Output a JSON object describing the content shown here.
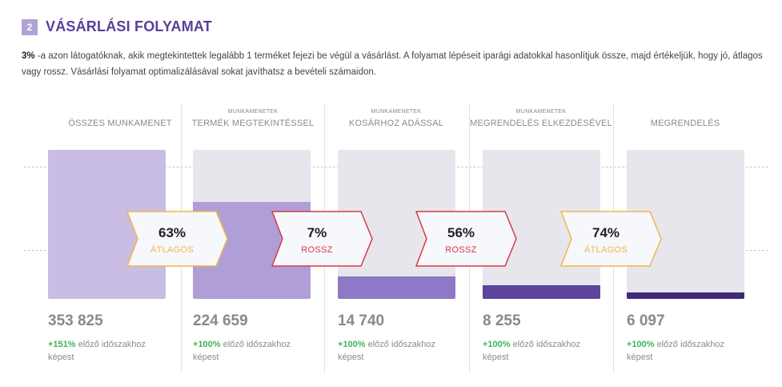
{
  "section": {
    "number": "2",
    "title": "VÁSÁRLÁSI FOLYAMAT"
  },
  "description": {
    "highlight": "3%",
    "text": " -a azon látogatóknak, akik megtekintettek legalább 1 terméket fejezi be végül a vásárlást. A folyamat lépéseit iparági adatokkal hasonlítjuk össze, majd értékeljük, hogy jó, átlagos vagy rossz. Vásárlási folyamat optimalizálásával sokat javíthatsz a bevételi számaidon."
  },
  "colors": {
    "accent": "#5b3e9c",
    "bar_track": "#e7e6ec",
    "average": "#f0b64a",
    "bad": "#d63a47",
    "positive": "#3cb55a"
  },
  "funnel": {
    "steps": [
      {
        "sublabel": "",
        "label": "ÖSSZES MUNKAMENET",
        "value": "353 825",
        "change_pct": "+151%",
        "change_text": " előző időszakhoz képest",
        "fill_fraction": 1.0,
        "fill_color": "#c9bde3"
      },
      {
        "sublabel": "MUNKAMENETEK",
        "label": "TERMÉK MEGTEKINTÉSSEL",
        "value": "224 659",
        "change_pct": "+100%",
        "change_text": " előző időszakhoz képest",
        "fill_fraction": 0.65,
        "fill_color": "#b09fd6"
      },
      {
        "sublabel": "MUNKAMENETEK",
        "label": "KOSÁRHOZ ADÁSSAL",
        "value": "14 740",
        "change_pct": "+100%",
        "change_text": " előző időszakhoz képest",
        "fill_fraction": 0.15,
        "fill_color": "#8d79c5"
      },
      {
        "sublabel": "MUNKAMENETEK",
        "label": "MEGRENDELÉS ELKEZDÉSÉVEL",
        "value": "8 255",
        "change_pct": "+100%",
        "change_text": " előző időszakhoz képest",
        "fill_fraction": 0.09,
        "fill_color": "#5c449f"
      },
      {
        "sublabel": "",
        "label": "MEGRENDELÉS",
        "value": "6 097",
        "change_pct": "+100%",
        "change_text": " előző időszakhoz képest",
        "fill_fraction": 0.045,
        "fill_color": "#3f2a78"
      }
    ],
    "conversions": [
      {
        "pct": "63%",
        "rating": "ÁTLAGOS",
        "color": "#f0b64a"
      },
      {
        "pct": "7%",
        "rating": "ROSSZ",
        "color": "#d63a47"
      },
      {
        "pct": "56%",
        "rating": "ROSSZ",
        "color": "#d63a47"
      },
      {
        "pct": "74%",
        "rating": "ÁTLAGOS",
        "color": "#f0b64a"
      }
    ]
  }
}
